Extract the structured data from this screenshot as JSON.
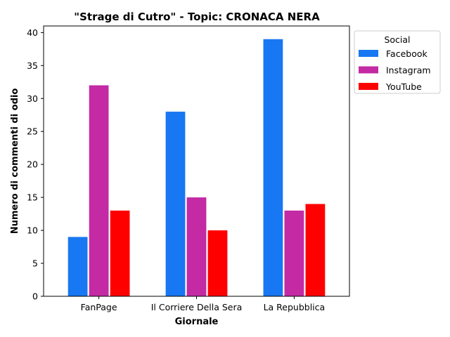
{
  "chart_data": {
    "type": "bar",
    "title": "\"Strage di Cutro\" - Topic: CRONACA NERA",
    "xlabel": "Giornale",
    "ylabel": "Numero di commenti di odio",
    "categories": [
      "FanPage",
      "Il Corriere Della Sera",
      "La Repubblica"
    ],
    "series": [
      {
        "name": "Facebook",
        "color": "#1877F2",
        "values": [
          9,
          28,
          39
        ]
      },
      {
        "name": "Instagram",
        "color": "#C32AA3",
        "values": [
          32,
          15,
          13
        ]
      },
      {
        "name": "YouTube",
        "color": "#FF0000",
        "values": [
          13,
          10,
          14
        ]
      }
    ],
    "ylim": [
      0,
      41
    ],
    "yticks": [
      0,
      5,
      10,
      15,
      20,
      25,
      30,
      35,
      40
    ],
    "legend": {
      "title": "Social",
      "placement": "outside-right-top"
    },
    "grid": false
  }
}
